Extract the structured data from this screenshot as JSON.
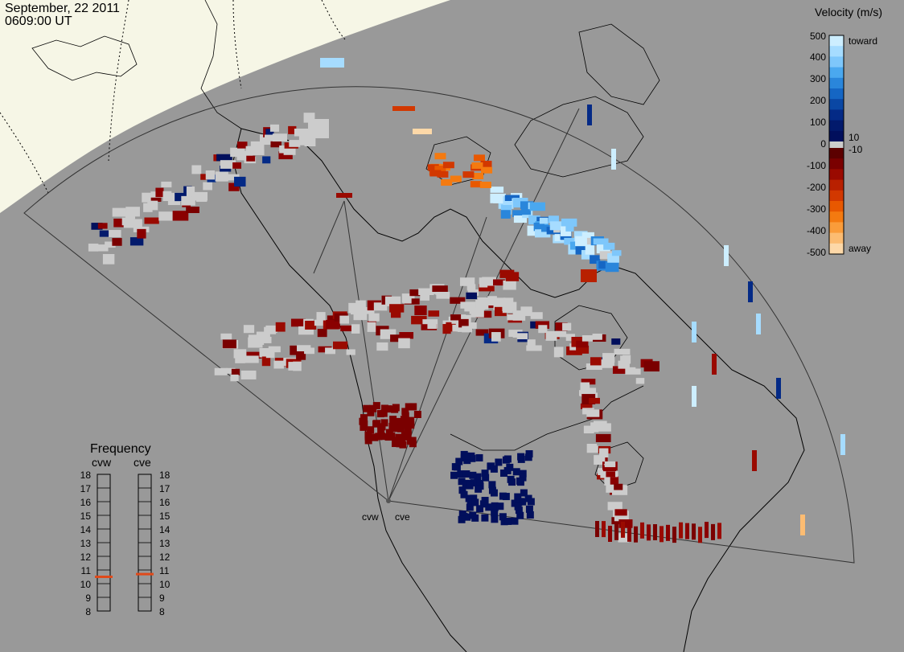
{
  "header": {
    "date": "September, 22 2011",
    "time": "0609:00 UT"
  },
  "colorbar": {
    "title": "Velocity (m/s)",
    "ticks": [
      "500",
      "400",
      "300",
      "200",
      "100",
      "0",
      "-100",
      "-200",
      "-300",
      "-400",
      "-500"
    ],
    "small_ticks": [
      "10",
      "-10"
    ],
    "toward_label": "toward",
    "away_label": "away",
    "colors_toward": [
      "#cdeeff",
      "#a6dcff",
      "#7ec7fb",
      "#4aa8ef",
      "#2a86db",
      "#1566c4",
      "#0a47a4",
      "#042a86",
      "#021a6c",
      "#010f5c"
    ],
    "colors_away": [
      "#5c0000",
      "#7a0000",
      "#9a0a00",
      "#b82000",
      "#d23800",
      "#e85800",
      "#f47a10",
      "#fa9c3a",
      "#fcbc72",
      "#fdd8a8"
    ],
    "ground_scatter_color": "#cccccc"
  },
  "frequency_panel": {
    "title": "Frequency",
    "radars": [
      {
        "name": "cvw",
        "value_mhz": 10.5
      },
      {
        "name": "cve",
        "value_mhz": 10.7
      }
    ],
    "scale": [
      "18",
      "17",
      "16",
      "15",
      "14",
      "13",
      "12",
      "11",
      "10",
      "9",
      "8"
    ],
    "marker_color": "#e04a1a"
  },
  "stations": [
    {
      "name": "cvw"
    },
    {
      "name": "cve"
    }
  ],
  "chart_data": {
    "type": "heatmap",
    "title": "",
    "xlabel": "",
    "ylabel": "",
    "colorbar_range": [
      -500,
      500
    ],
    "colorbar_unit": "m/s",
    "colorbar_ticks": [
      500,
      400,
      300,
      200,
      100,
      10,
      0,
      -10,
      -100,
      -200,
      -300,
      -400,
      -500
    ],
    "series": [
      {
        "name": "cvw"
      },
      {
        "name": "cve"
      }
    ]
  }
}
